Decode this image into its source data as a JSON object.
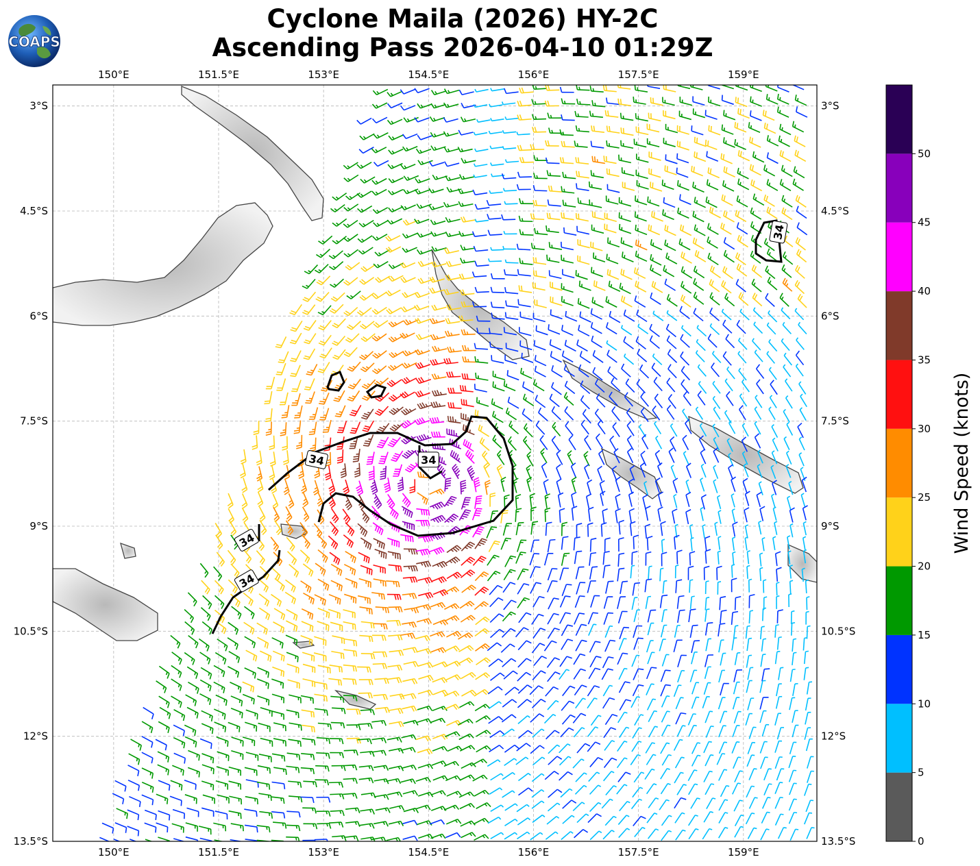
{
  "title_line1": "Cyclone Maila (2026) HY-2C",
  "title_line2": "Ascending Pass 2026-04-10 01:29Z",
  "logo_text": "COAPS",
  "x_ticks": [
    "150°E",
    "151.5°E",
    "153°E",
    "154.5°E",
    "156°E",
    "157.5°E",
    "159°E"
  ],
  "x_tick_values": [
    150,
    151.5,
    153,
    154.5,
    156,
    157.5,
    159
  ],
  "y_ticks": [
    "3°S",
    "4.5°S",
    "6°S",
    "7.5°S",
    "9°S",
    "10.5°S",
    "12°S",
    "13.5°S"
  ],
  "y_tick_values": [
    -3,
    -4.5,
    -6,
    -7.5,
    -9,
    -10.5,
    -12,
    -13.5
  ],
  "lon_range": [
    149.13,
    160.05
  ],
  "lat_range": [
    -13.5,
    -2.7
  ],
  "colorbar": {
    "label": "Wind Speed (knots)",
    "tick_labels": [
      "0",
      "5",
      "10",
      "15",
      "20",
      "25",
      "30",
      "35",
      "40",
      "45",
      "50"
    ],
    "bins": [
      {
        "min": 0,
        "max": 5,
        "color": "#5a5a5a"
      },
      {
        "min": 5,
        "max": 10,
        "color": "#00bfff"
      },
      {
        "min": 10,
        "max": 15,
        "color": "#0033ff"
      },
      {
        "min": 15,
        "max": 20,
        "color": "#009900"
      },
      {
        "min": 20,
        "max": 25,
        "color": "#ffd21a"
      },
      {
        "min": 25,
        "max": 30,
        "color": "#ff8c00"
      },
      {
        "min": 30,
        "max": 35,
        "color": "#ff1010"
      },
      {
        "min": 35,
        "max": 40,
        "color": "#803a2a"
      },
      {
        "min": 40,
        "max": 45,
        "color": "#ff00ff"
      },
      {
        "min": 45,
        "max": 50,
        "color": "#8800bb"
      },
      {
        "min": 50,
        "max": 55,
        "color": "#2a0055"
      }
    ]
  },
  "contour_label": "34",
  "storm_center": {
    "lon": 154.5,
    "lat": -8.4
  },
  "chart_data": {
    "type": "map",
    "title": "Cyclone Maila (2026) HY-2C Ascending Pass 2026-04-10 01:29Z",
    "xlabel": "",
    "ylabel": "",
    "xlim": [
      149.13,
      160.05
    ],
    "ylim": [
      -13.5,
      -2.7
    ],
    "contour_level_kt": 34,
    "contour_labels": [
      {
        "text": "34",
        "lon": 152.9,
        "lat": -8.05
      },
      {
        "text": "34",
        "lon": 154.5,
        "lat": -8.05
      },
      {
        "text": "34",
        "lon": 151.9,
        "lat": -9.2
      },
      {
        "text": "34",
        "lon": 151.9,
        "lat": -9.78
      },
      {
        "text": "34",
        "lon": 159.5,
        "lat": -4.8
      }
    ],
    "grid": true
  }
}
